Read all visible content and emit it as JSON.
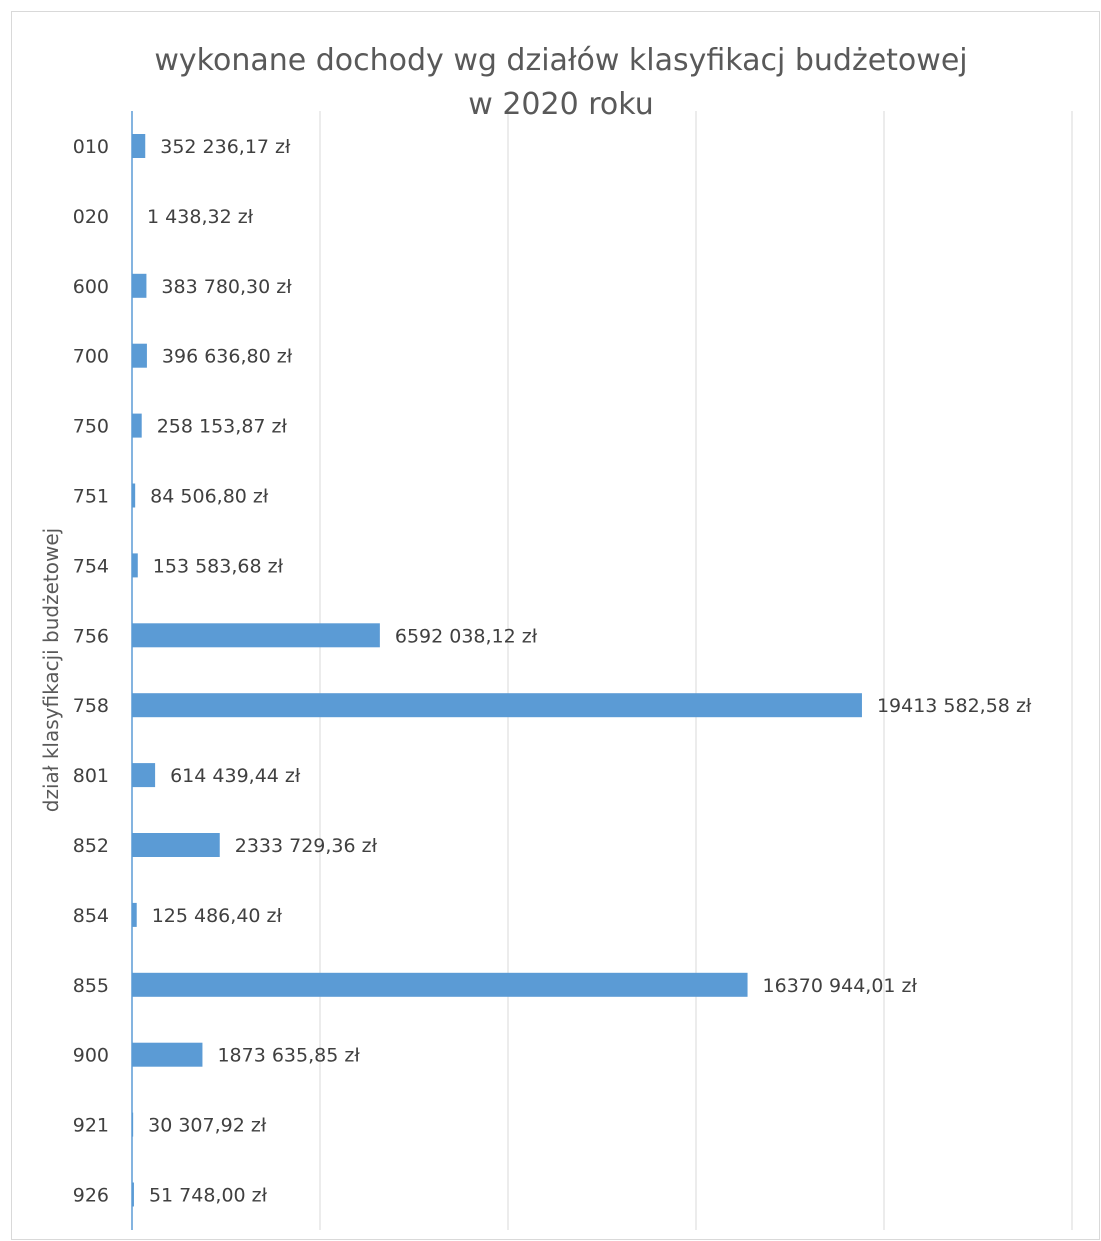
{
  "chart_data": {
    "type": "bar",
    "orientation": "horizontal",
    "title": "wykonane dochody wg działów klasyfikacj budżetowej",
    "subtitle": "w 2020 roku",
    "xlabel": "",
    "ylabel": "dział klasyfikacji budżetowej",
    "xlim": [
      0,
      25000000
    ],
    "grid": true,
    "legend": "none",
    "bar_color": "#5b9bd5",
    "categories": [
      "010",
      "020",
      "600",
      "700",
      "750",
      "751",
      "754",
      "756",
      "758",
      "801",
      "852",
      "854",
      "855",
      "900",
      "921",
      "926"
    ],
    "values": [
      352236.17,
      1438.32,
      383780.3,
      396636.8,
      258153.87,
      84506.8,
      153583.68,
      6592038.12,
      19413582.58,
      614439.44,
      2333729.36,
      125486.4,
      16370944.01,
      1873635.85,
      30307.92,
      51748.0
    ],
    "data_labels": [
      "352 236,17 zł",
      "1 438,32 zł",
      "383 780,30 zł",
      "396 636,80 zł",
      "258 153,87 zł",
      "84 506,80 zł",
      "153 583,68 zł",
      "6592 038,12 zł",
      "19413 582,58 zł",
      "614 439,44 zł",
      "2333 729,36 zł",
      "125 486,40 zł",
      "16370 944,01 zł",
      "1873 635,85 zł",
      "30 307,92 zł",
      "51 748,00 zł"
    ]
  }
}
